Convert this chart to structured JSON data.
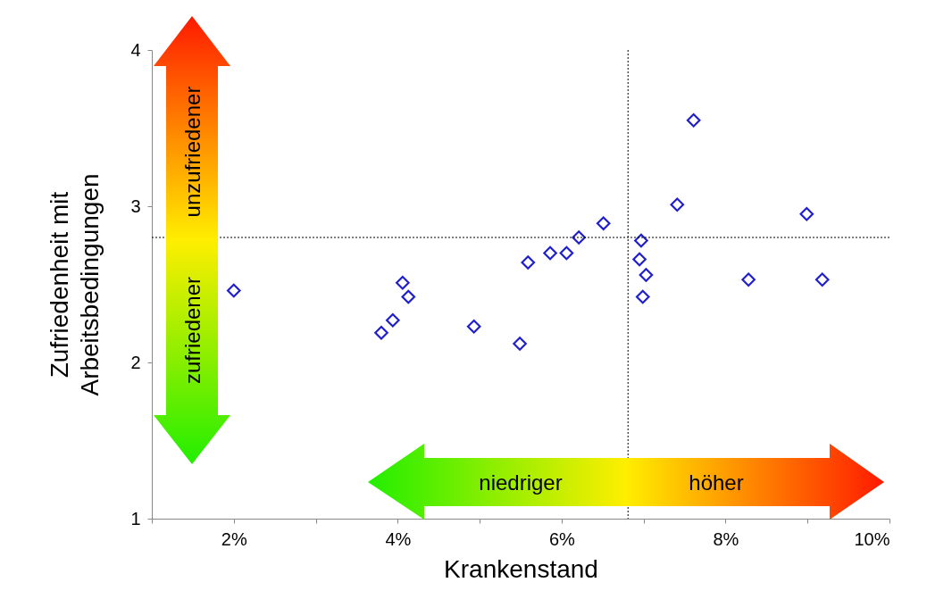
{
  "chart_data": {
    "type": "scatter",
    "xlabel": "Krankenstand",
    "ylabel": "Zufriedenheit mit\nArbeitsbedingungen",
    "x": [
      2.0,
      3.8,
      3.94,
      4.06,
      4.13,
      4.93,
      5.49,
      5.59,
      5.86,
      6.06,
      6.21,
      6.51,
      6.97,
      6.95,
      7.03,
      6.99,
      7.61,
      7.41,
      8.28,
      8.99,
      9.18
    ],
    "series": [
      {
        "color": "#1f1fd0",
        "values": [
          2.46,
          2.19,
          2.27,
          2.51,
          2.42,
          2.23,
          2.12,
          2.64,
          2.7,
          2.7,
          2.8,
          2.89,
          2.78,
          2.66,
          2.56,
          2.42,
          3.55,
          3.01,
          2.53,
          2.95,
          2.53
        ]
      }
    ],
    "xlim": [
      1,
      10
    ],
    "xticks": [
      {
        "value": 1,
        "label": null
      },
      {
        "value": 2,
        "label": "2%"
      },
      {
        "value": 3,
        "label": null
      },
      {
        "value": 4,
        "label": "4%"
      },
      {
        "value": 5,
        "label": null
      },
      {
        "value": 6,
        "label": "6%"
      },
      {
        "value": 7,
        "label": null
      },
      {
        "value": 8,
        "label": "8%"
      },
      {
        "value": 9,
        "label": null
      },
      {
        "value": 10,
        "label": "10%"
      }
    ],
    "ylim": [
      1,
      4
    ],
    "yticks": [
      1,
      2,
      3,
      4
    ],
    "ref_lines": [
      {
        "axis": "x",
        "value": 6.81,
        "line_style": "dotted"
      },
      {
        "axis": "y",
        "value": 2.8,
        "line_style": "dotted"
      }
    ],
    "annotations": [
      "unzufriedener",
      "zufriedener",
      "niedriger",
      "höher"
    ],
    "marker": "diamond",
    "grid": false,
    "legend": false
  }
}
